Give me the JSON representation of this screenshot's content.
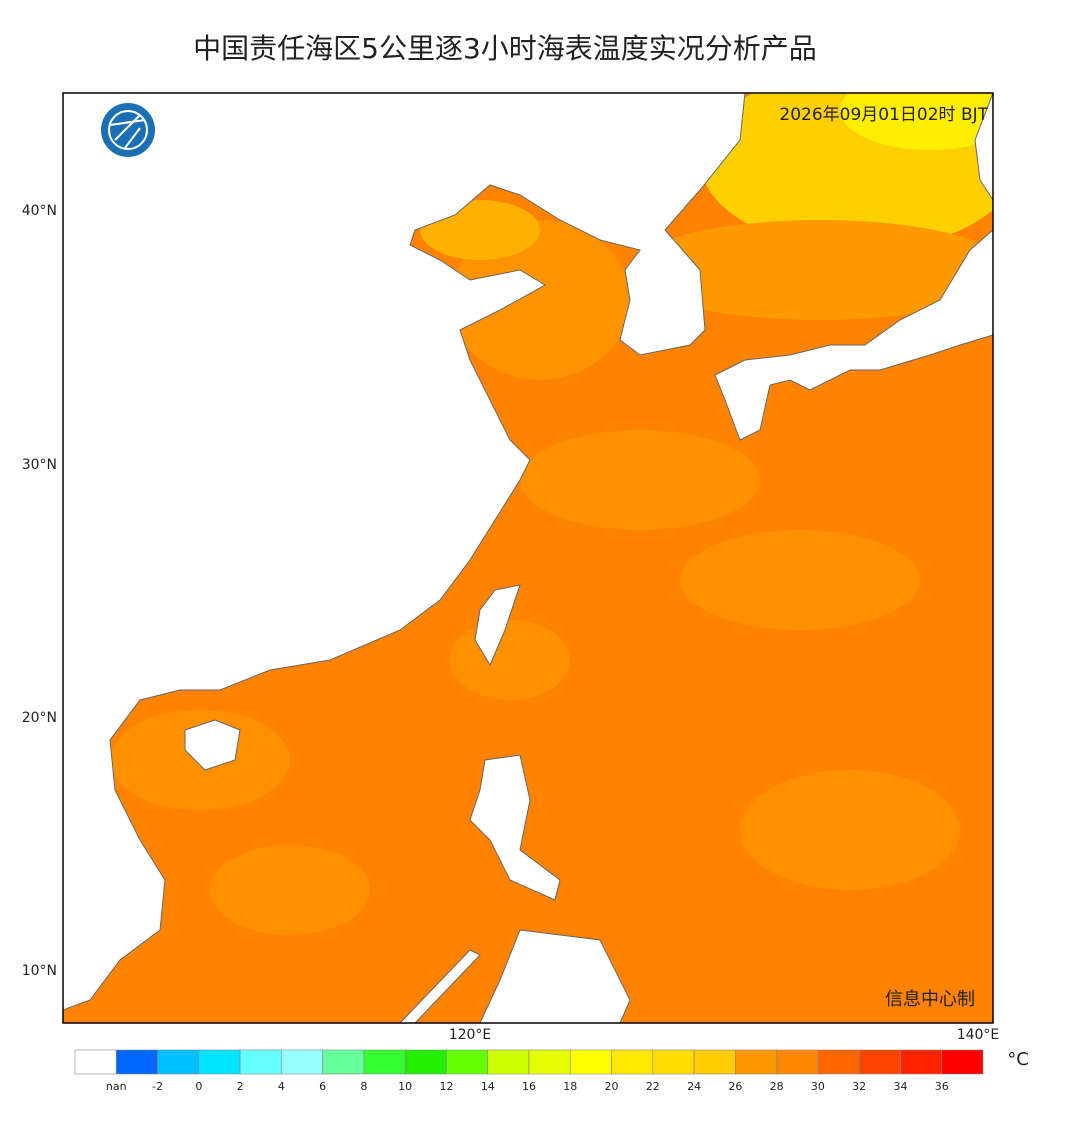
{
  "title": "中国责任海区5公里逐3小时海表温度实况分析产品",
  "timestamp": "2026年09月01日02时 BJT",
  "credit": "信息中心制",
  "lat_labels": [
    "40°N",
    "30°N",
    "20°N",
    "10°N"
  ],
  "lon_labels": [
    "120°E",
    "140°E"
  ],
  "colorbar": {
    "unit": "°C",
    "labels": [
      "nan",
      "-2",
      "0",
      "2",
      "4",
      "6",
      "8",
      "10",
      "12",
      "14",
      "16",
      "18",
      "20",
      "22",
      "24",
      "26",
      "28",
      "30",
      "32",
      "34",
      "36"
    ],
    "colors": [
      "#ffffff",
      "#0066ff",
      "#00bfff",
      "#00e5ff",
      "#66ffff",
      "#99ffff",
      "#66ff99",
      "#33ff33",
      "#22ee00",
      "#66ff00",
      "#ccff00",
      "#e5ff00",
      "#ffff00",
      "#ffe800",
      "#ffdd00",
      "#ffcc00",
      "#ff9900",
      "#ff8800",
      "#ff6600",
      "#ff4400",
      "#ff2200",
      "#ff0000"
    ]
  }
}
